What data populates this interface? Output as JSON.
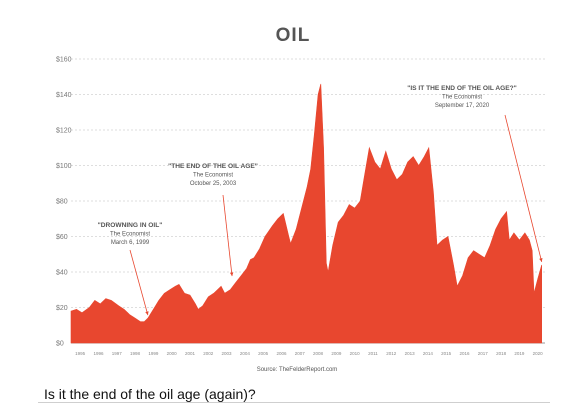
{
  "chart_data": {
    "type": "area",
    "title": "OIL",
    "source": "Source: TheFelderReport.com",
    "y_ticks": [
      "$0",
      "$20",
      "$40",
      "$60",
      "$80",
      "$100",
      "$120",
      "$140",
      "$160"
    ],
    "x_ticks": [
      "1995",
      "1996",
      "1997",
      "1998",
      "1999",
      "2000",
      "2001",
      "2002",
      "2003",
      "2004",
      "2005",
      "2006",
      "2007",
      "2008",
      "2009",
      "2010",
      "2011",
      "2012",
      "2013",
      "2014",
      "2015",
      "2016",
      "2017",
      "2018",
      "2019",
      "2020"
    ],
    "ylim": [
      0,
      160
    ],
    "xlim": [
      1995.0,
      2020.9
    ],
    "color": "#e8472f",
    "series": {
      "x": [
        1995.0,
        1995.3,
        1995.6,
        1996.0,
        1996.3,
        1996.6,
        1996.9,
        1997.2,
        1997.6,
        1997.9,
        1998.2,
        1998.5,
        1998.8,
        1999.0,
        1999.2,
        1999.5,
        1999.8,
        2000.1,
        2000.4,
        2000.7,
        2000.9,
        2001.2,
        2001.5,
        2001.8,
        2001.95,
        2002.2,
        2002.5,
        2002.8,
        2003.0,
        2003.2,
        2003.4,
        2003.7,
        2004.0,
        2004.3,
        2004.6,
        2004.8,
        2005.0,
        2005.3,
        2005.6,
        2005.8,
        2006.0,
        2006.3,
        2006.6,
        2006.9,
        2007.0,
        2007.3,
        2007.6,
        2007.9,
        2008.1,
        2008.3,
        2008.5,
        2008.65,
        2008.8,
        2008.95,
        2009.05,
        2009.3,
        2009.6,
        2009.9,
        2010.2,
        2010.5,
        2010.8,
        2011.0,
        2011.3,
        2011.6,
        2011.9,
        2012.2,
        2012.5,
        2012.8,
        2013.1,
        2013.4,
        2013.7,
        2014.0,
        2014.3,
        2014.55,
        2014.8,
        2015.0,
        2015.3,
        2015.6,
        2015.9,
        2016.1,
        2016.4,
        2016.7,
        2017.0,
        2017.3,
        2017.6,
        2017.9,
        2018.2,
        2018.5,
        2018.8,
        2018.95,
        2019.2,
        2019.5,
        2019.8,
        2020.05,
        2020.2,
        2020.3,
        2020.5,
        2020.72
      ],
      "values": [
        18,
        19,
        17,
        20,
        24,
        22,
        25,
        24,
        21,
        19,
        16,
        14,
        12,
        12,
        14,
        19,
        24,
        28,
        30,
        32,
        33,
        28,
        27,
        22,
        19,
        21,
        26,
        28,
        30,
        32,
        28,
        30,
        34,
        38,
        42,
        47,
        48,
        53,
        60,
        63,
        66,
        70,
        73,
        60,
        56,
        64,
        76,
        88,
        98,
        118,
        140,
        146,
        110,
        45,
        40,
        55,
        68,
        72,
        78,
        76,
        80,
        92,
        110,
        102,
        98,
        108,
        98,
        92,
        95,
        102,
        105,
        100,
        105,
        110,
        85,
        55,
        58,
        60,
        44,
        32,
        38,
        48,
        52,
        50,
        48,
        55,
        64,
        70,
        74,
        58,
        62,
        58,
        62,
        58,
        52,
        28,
        36,
        44
      ]
    },
    "annotations": [
      {
        "lines": [
          "\"DROWNING IN OIL\"",
          "The Economist",
          "March 6, 1999"
        ],
        "x": 1999.2,
        "y": 14
      },
      {
        "lines": [
          "\"THE END OF THE OIL AGE\"",
          "The Economist",
          "October 25, 2003"
        ],
        "x": 2003.8,
        "y": 36
      },
      {
        "lines": [
          "\"IS IT THE END OF THE OIL AGE?\"",
          "The Economist",
          "September 17, 2020"
        ],
        "x": 2020.72,
        "y": 44
      }
    ]
  },
  "caption": "Is it the end of the oil age (again)?"
}
